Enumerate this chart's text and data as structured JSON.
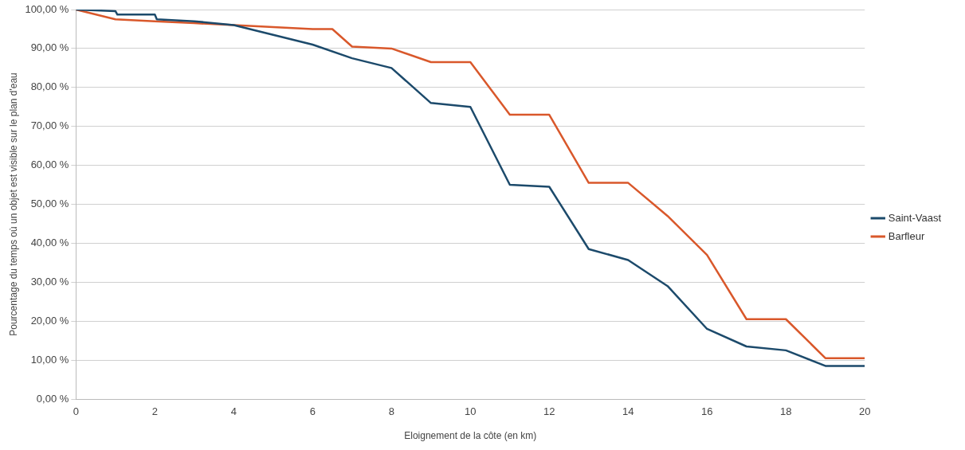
{
  "chart_data": {
    "type": "line",
    "xlabel": "Eloignement de la côte (en km)",
    "ylabel": "Pourcentage du temps où un objet est visible sur le plan d'eau",
    "xlim": [
      0,
      20
    ],
    "xticks": [
      0,
      2,
      4,
      6,
      8,
      10,
      12,
      14,
      16,
      18,
      20
    ],
    "ylim": [
      0,
      100
    ],
    "yticks": [
      {
        "value": 0,
        "label": "0,00 %"
      },
      {
        "value": 10,
        "label": "10,00 %"
      },
      {
        "value": 20,
        "label": "20,00 %"
      },
      {
        "value": 30,
        "label": "30,00 %"
      },
      {
        "value": 40,
        "label": "40,00 %"
      },
      {
        "value": 50,
        "label": "50,00 %"
      },
      {
        "value": 60,
        "label": "60,00 %"
      },
      {
        "value": 70,
        "label": "70,00 %"
      },
      {
        "value": 80,
        "label": "80,00 %"
      },
      {
        "value": 90,
        "label": "90,00 %"
      },
      {
        "value": 100,
        "label": "100,00 %"
      }
    ],
    "grid": "y",
    "legend": "right",
    "marker": "none",
    "line_style": "solid",
    "series": [
      {
        "name": "Saint-Vaast",
        "color": "#1c4a6b",
        "x": [
          0,
          1,
          1.05,
          2,
          2.05,
          3,
          4,
          5,
          6,
          7,
          8,
          9,
          10,
          11,
          12,
          13,
          14,
          15,
          16,
          17,
          18,
          19,
          20
        ],
        "values": [
          100,
          99.6,
          98.7,
          98.7,
          97.5,
          97,
          96,
          93.5,
          91,
          87.5,
          85,
          76,
          75,
          55,
          54.5,
          38.5,
          35.7,
          29,
          18,
          13.5,
          12.5,
          8.5,
          8.5
        ]
      },
      {
        "name": "Barfleur",
        "color": "#d9582b",
        "x": [
          0,
          1,
          2,
          3,
          4,
          5,
          6,
          6.5,
          7,
          8,
          9,
          10,
          11,
          12,
          13,
          14,
          15,
          16,
          17,
          18,
          19,
          20
        ],
        "values": [
          100,
          97.5,
          97,
          96.5,
          96,
          95.5,
          95,
          95,
          90.5,
          90,
          86.5,
          86.5,
          73,
          73,
          55.5,
          55.5,
          47,
          37,
          20.5,
          20.5,
          10.5,
          10.5
        ]
      }
    ]
  }
}
